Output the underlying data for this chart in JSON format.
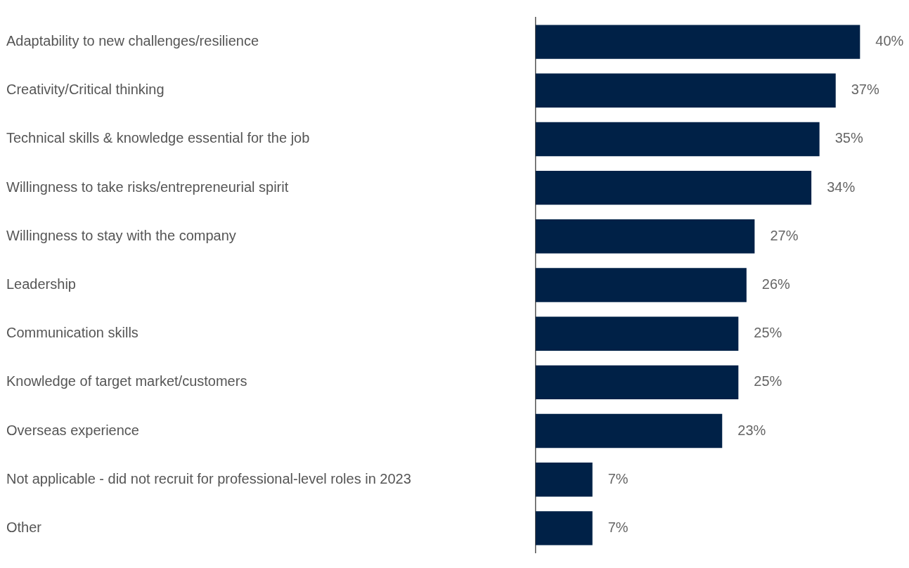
{
  "chart_data": {
    "type": "bar",
    "orientation": "horizontal",
    "categories": [
      "Adaptability to new challenges/resilience",
      "Creativity/Critical thinking",
      "Technical skills & knowledge essential for the job",
      "Willingness to take risks/entrepreneurial spirit",
      "Willingness to stay with the company",
      "Leadership",
      "Communication skills",
      "Knowledge of target market/customers",
      "Overseas experience",
      "Not applicable - did not recruit for professional-level roles in 2023",
      "Other"
    ],
    "values": [
      40,
      37,
      35,
      34,
      27,
      26,
      25,
      25,
      23,
      7,
      7
    ],
    "value_labels": [
      "40%",
      "37%",
      "35%",
      "34%",
      "27%",
      "26%",
      "25%",
      "25%",
      "23%",
      "7%",
      "7%"
    ],
    "color": "#002147",
    "tick_labels": "y"
  }
}
